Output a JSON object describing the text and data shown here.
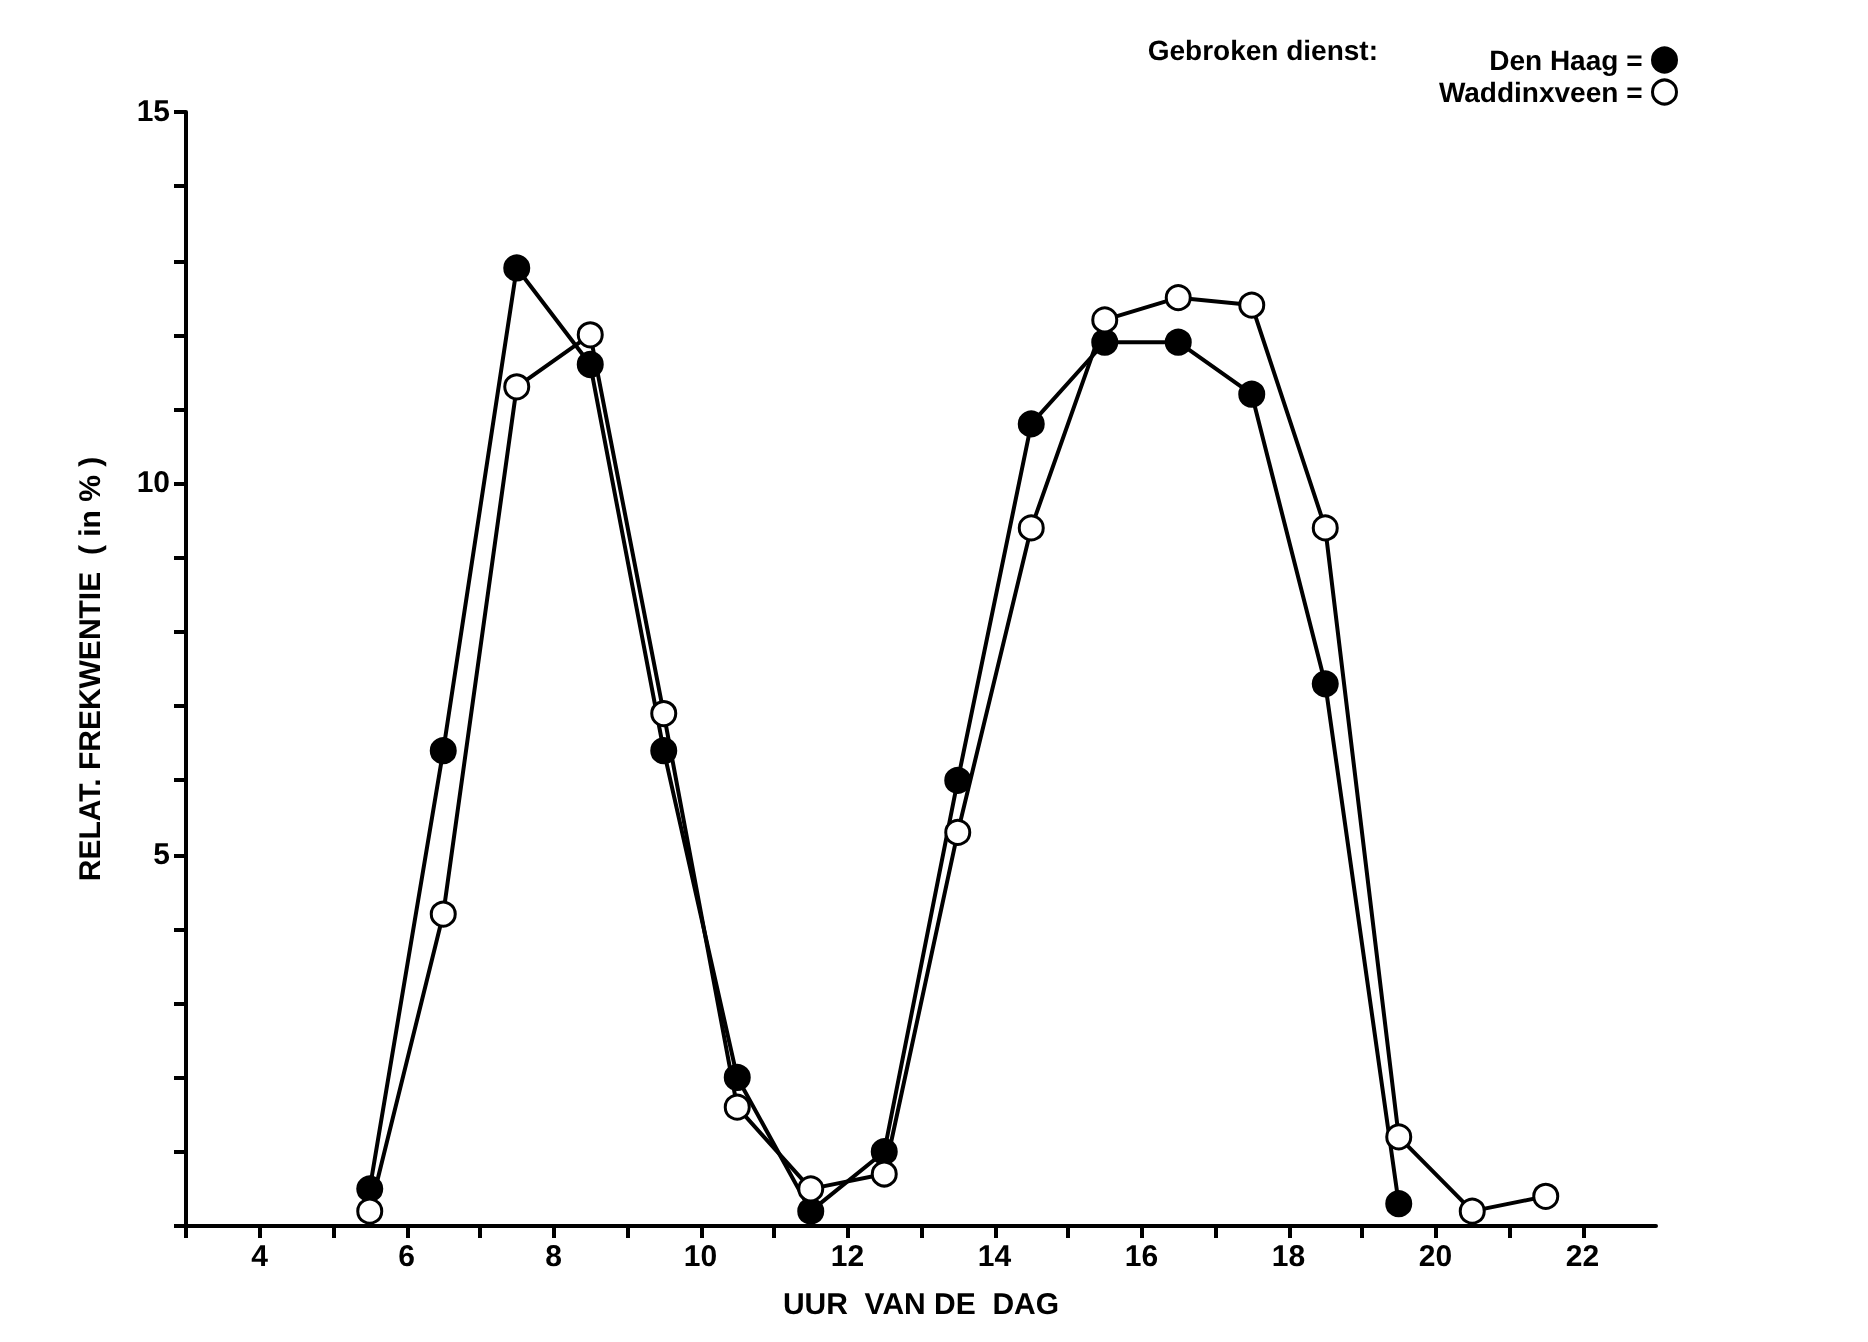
{
  "chart_data": {
    "type": "line",
    "xlabel": "UUR  VAN DE  DAG",
    "ylabel": "RELAT. FREKWENTIE  ( in % )",
    "legend_title": "Gebroken dienst:",
    "x": [
      5.5,
      6.5,
      7.5,
      8.5,
      9.5,
      10.5,
      11.5,
      12.5,
      13.5,
      14.5,
      15.5,
      16.5,
      17.5,
      18.5,
      19.5,
      20.5,
      21.5
    ],
    "series": [
      {
        "name": "Den Haag =",
        "color": "#000000",
        "values": [
          0.5,
          6.4,
          12.9,
          11.6,
          6.4,
          2.0,
          0.2,
          1.0,
          6.0,
          10.8,
          11.9,
          11.9,
          11.2,
          7.3,
          0.3,
          null,
          null
        ]
      },
      {
        "name": "Waddinxveen =",
        "color": "#ffffff",
        "values": [
          0.2,
          4.2,
          11.3,
          12.0,
          6.9,
          1.6,
          0.5,
          0.7,
          5.3,
          9.4,
          12.2,
          12.5,
          12.4,
          9.4,
          1.2,
          0.2,
          0.4
        ]
      }
    ],
    "xlim": [
      3,
      23
    ],
    "xticks": [
      {
        "value": 3,
        "label": null
      },
      4,
      {
        "value": 5,
        "label": null
      },
      6,
      {
        "value": 7,
        "label": null
      },
      8,
      {
        "value": 9,
        "label": null
      },
      10,
      {
        "value": 11,
        "label": null
      },
      12,
      {
        "value": 13,
        "label": null
      },
      14,
      {
        "value": 15,
        "label": null
      },
      16,
      {
        "value": 17,
        "label": null
      },
      18,
      {
        "value": 19,
        "label": null
      },
      20,
      {
        "value": 21,
        "label": null
      },
      22
    ],
    "ylim": [
      0,
      15
    ],
    "yticks": [
      {
        "value": 0,
        "label": null
      },
      {
        "value": 1,
        "label": null
      },
      {
        "value": 2,
        "label": null
      },
      {
        "value": 3,
        "label": null
      },
      {
        "value": 4,
        "label": null
      },
      5,
      {
        "value": 6,
        "label": null
      },
      {
        "value": 7,
        "label": null
      },
      {
        "value": 8,
        "label": null
      },
      {
        "value": 9,
        "label": null
      },
      10,
      {
        "value": 11,
        "label": null
      },
      {
        "value": 12,
        "label": null
      },
      {
        "value": 13,
        "label": null
      },
      {
        "value": 14,
        "label": null
      },
      15
    ],
    "grid": false,
    "legend": "top right",
    "marker": "circle",
    "line_style": "solid"
  }
}
